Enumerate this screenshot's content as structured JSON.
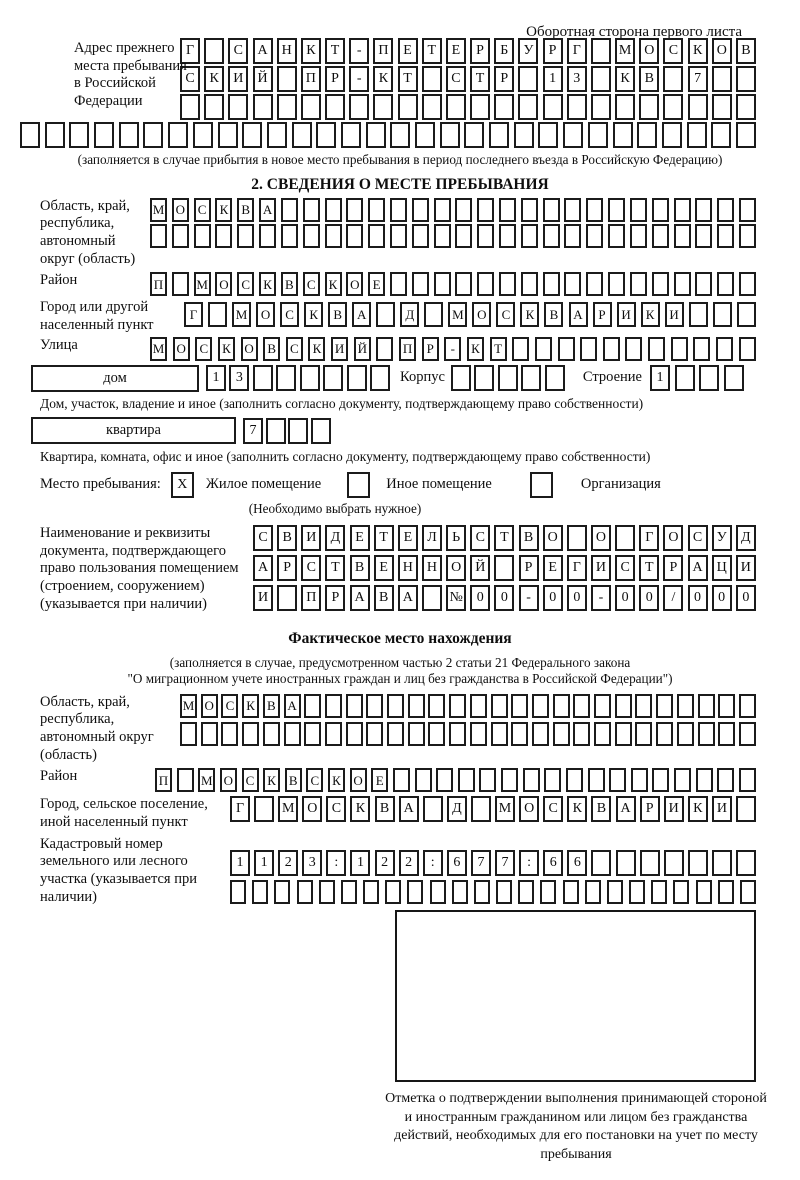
{
  "header": {
    "back_note": "Оборотная сторона первого листа"
  },
  "prev_address": {
    "label": "Адрес прежнего места пребывания в Российской Федерации",
    "line1": "Г САНКТ-ПЕТЕРБУРГ МОСКОВ",
    "line2": "СКИЙ ПР-КТ СТР 13 КВ 7",
    "line3": "",
    "line4": "",
    "note": "(заполняется в случае прибытия в новое место пребывания в период последнего въезда в Российскую Федерацию)"
  },
  "section2": {
    "title": "2. СВЕДЕНИЯ О МЕСТЕ ПРЕБЫВАНИЯ",
    "region_label": "Область, край, республика, автономный округ (область)",
    "region_line1": "МОСКВА",
    "region_line2": "",
    "district_label": "Район",
    "district_value": "П МОСКВСКОЕ",
    "city_label": "Город или другой населенный пункт",
    "city_value": "Г МОСКВА Д МОСКВАРИКИ",
    "street_label": "Улица",
    "street_value": "МОСКОВСКИЙ ПР-КТ",
    "house_label": "дом",
    "house_value": "13",
    "korpus_label": "Корпус",
    "korpus_value": "",
    "stroenie_label": "Строение",
    "stroenie_value": "1",
    "house_note": "Дом, участок, владение и иное (заполнить согласно документу, подтверждающему право собственности)",
    "apartment_label": "квартира",
    "apartment_value": "7",
    "apartment_note": "Квартира, комната, офис и иное (заполнить согласно документу, подтверждающему право собственности)",
    "stay_label": "Место пребывания:",
    "stay_options": [
      {
        "mark": "X",
        "label": "Жилое помещение"
      },
      {
        "mark": "",
        "label": "Иное помещение"
      },
      {
        "mark": "",
        "label": "Организация"
      }
    ],
    "stay_note": "(Необходимо выбрать нужное)",
    "doc_label": "Наименование и реквизиты документа, подтверждающего право пользования помещением (строением, сооружением) (указывается при наличии)",
    "doc_line1": "СВИДЕТЕЛЬСТВО О ГОСУД",
    "doc_line2": "АРСТВЕННОЙ РЕГИСТРАЦИ",
    "doc_line3": "И ПРАВА №00-00-00/000"
  },
  "actual_location": {
    "title": "Фактическое место нахождения",
    "note_line1": "(заполняется в случае, предусмотренном частью 2 статьи 21 Федерального закона",
    "note_line2": "\"О миграционном учете иностранных граждан и лиц без гражданства в Российской Федерации\")",
    "region_label": "Область, край, республика, автономный округ (область)",
    "region_line1": "МОСКВА",
    "region_line2": "",
    "district_label": "Район",
    "district_value": "П МОСКВСКОЕ",
    "city_label": "Город, сельское поселение, иной населенный пункт",
    "city_value": "Г МОСКВА Д МОСКВАРИКИ",
    "cadastre_label": "Кадастровый номер земельного или лесного участка (указывается при наличии)",
    "cadastre_line1": "1123:122:677:66",
    "cadastre_line2": ""
  },
  "stamp": {
    "caption": "Отметка о подтверждении выполнения принимающей стороной и иностранным гражданином или лицом без гражданства действий, необходимых для его постановки на учет по месту пребывания"
  }
}
